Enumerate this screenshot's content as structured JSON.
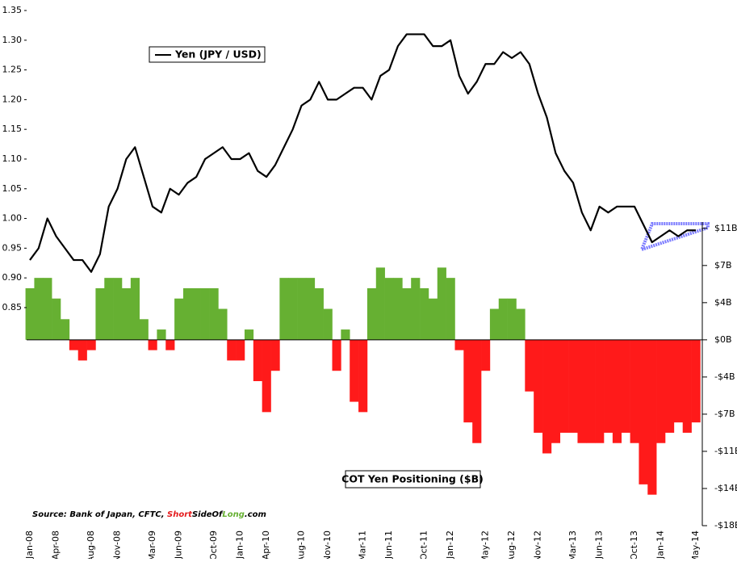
{
  "chart_data": {
    "type": "combo",
    "categories": [
      "Jan-08",
      null,
      null,
      "Apr-08",
      null,
      null,
      null,
      "Aug-08",
      null,
      null,
      "Nov-08",
      null,
      null,
      null,
      "Mar-09",
      null,
      null,
      "Jun-09",
      null,
      null,
      null,
      "Oct-09",
      null,
      null,
      "Jan-10",
      null,
      null,
      "Apr-10",
      null,
      null,
      null,
      "Aug-10",
      null,
      null,
      "Nov-10",
      null,
      null,
      null,
      "Mar-11",
      null,
      null,
      "Jun-11",
      null,
      null,
      null,
      "Oct-11",
      null,
      null,
      "Jan-12",
      null,
      null,
      null,
      "May-12",
      null,
      null,
      "Aug-12",
      null,
      null,
      "Nov-12",
      null,
      null,
      null,
      "Mar-13",
      null,
      null,
      "Jun-13",
      null,
      null,
      null,
      "Oct-13",
      null,
      null,
      "Jan-14",
      null,
      null,
      null,
      "May-14"
    ],
    "series": [
      {
        "name": "Yen (JPY / USD)",
        "type": "line",
        "axis": "y",
        "color": "#000000",
        "values": [
          0.93,
          0.95,
          1.0,
          0.97,
          0.95,
          0.93,
          0.93,
          0.91,
          0.94,
          1.02,
          1.05,
          1.1,
          1.12,
          1.07,
          1.02,
          1.01,
          1.05,
          1.04,
          1.06,
          1.07,
          1.1,
          1.11,
          1.12,
          1.1,
          1.1,
          1.11,
          1.08,
          1.07,
          1.09,
          1.12,
          1.15,
          1.19,
          1.2,
          1.23,
          1.2,
          1.2,
          1.21,
          1.22,
          1.22,
          1.2,
          1.24,
          1.25,
          1.29,
          1.31,
          1.31,
          1.31,
          1.29,
          1.29,
          1.3,
          1.24,
          1.21,
          1.23,
          1.26,
          1.26,
          1.28,
          1.27,
          1.28,
          1.26,
          1.21,
          1.17,
          1.11,
          1.08,
          1.06,
          1.01,
          0.98,
          1.02,
          1.01,
          1.02,
          1.02,
          1.02,
          0.99,
          0.96,
          0.97,
          0.98,
          0.97,
          0.98,
          0.98
        ]
      },
      {
        "name": "COT Yen Positioning ($B)",
        "type": "bar",
        "axis": "y2",
        "color": "#66b032",
        "negative_color": "#ff1a1a",
        "values": [
          5,
          6,
          6,
          4,
          2,
          -1,
          -2,
          -1,
          5,
          6,
          6,
          5,
          6,
          2,
          -1,
          1,
          -1,
          4,
          5,
          5,
          5,
          5,
          3,
          -2,
          -2,
          1,
          -4,
          -7,
          -3,
          6,
          6,
          6,
          6,
          5,
          3,
          -3,
          1,
          -6,
          -7,
          5,
          7,
          6,
          6,
          5,
          6,
          5,
          4,
          7,
          6,
          -1,
          -8,
          -10,
          -3,
          3,
          4,
          4,
          3,
          -5,
          -9,
          -11,
          -10,
          -9,
          -9,
          -10,
          -10,
          -10,
          -9,
          -10,
          -9,
          -10,
          -14,
          -15,
          -10,
          -9,
          -8,
          -9,
          -8
        ]
      }
    ],
    "ylim": [
      0.483,
      1.35
    ],
    "yticks": [
      0.85,
      {
        "value": 0.9,
        "label": "0.90"
      },
      0.95,
      {
        "value": 1.0,
        "label": "1.00"
      },
      1.05,
      {
        "value": 1.1,
        "label": "1.10"
      },
      1.15,
      {
        "value": 1.2,
        "label": "1.20"
      },
      1.25,
      {
        "value": 1.3,
        "label": "1.30"
      },
      1.35
    ],
    "y2lim": [
      -18,
      31.9
    ],
    "y2ticks": [
      {
        "value": 10.8,
        "label": "$11B"
      },
      {
        "value": 7.2,
        "label": "$7B"
      },
      {
        "value": 3.6,
        "label": "$4B"
      },
      {
        "value": 0,
        "label": "$0B"
      },
      {
        "value": -3.6,
        "label": "-$4B"
      },
      {
        "value": -7.2,
        "label": "-$7B"
      },
      {
        "value": -10.8,
        "label": "-$11B"
      },
      {
        "value": -14.4,
        "label": "-$14B"
      },
      {
        "value": -18,
        "label": "-$18B"
      }
    ],
    "source": {
      "prefix": "Source: Bank of Japan, CFTC,",
      "brand": [
        "Short",
        "Side",
        "Of",
        "Long",
        ".com"
      ]
    }
  }
}
